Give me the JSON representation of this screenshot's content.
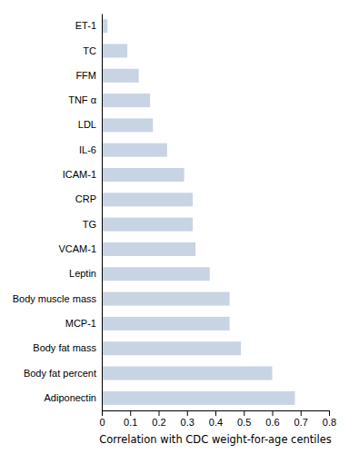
{
  "chart_data": {
    "type": "bar",
    "orientation": "horizontal",
    "categories": [
      "ET-1",
      "TC",
      "FFM",
      "TNF α",
      "LDL",
      "IL-6",
      "ICAM-1",
      "CRP",
      "TG",
      "VCAM-1",
      "Leptin",
      "Body muscle mass",
      "MCP-1",
      "Body fat mass",
      "Body fat percent",
      "Adiponectin"
    ],
    "values": [
      0.02,
      0.09,
      0.13,
      0.17,
      0.18,
      0.23,
      0.29,
      0.32,
      0.32,
      0.33,
      0.38,
      0.45,
      0.45,
      0.49,
      0.6,
      0.68
    ],
    "color": "#c8d4e3",
    "xlabel": "Correlation with CDC weight-for-age centiles",
    "xlim": [
      0,
      0.8
    ],
    "xticks": [
      0,
      0.1,
      0.2,
      0.3,
      0.4,
      0.5,
      0.6,
      0.7,
      0.8
    ],
    "grid": false
  }
}
